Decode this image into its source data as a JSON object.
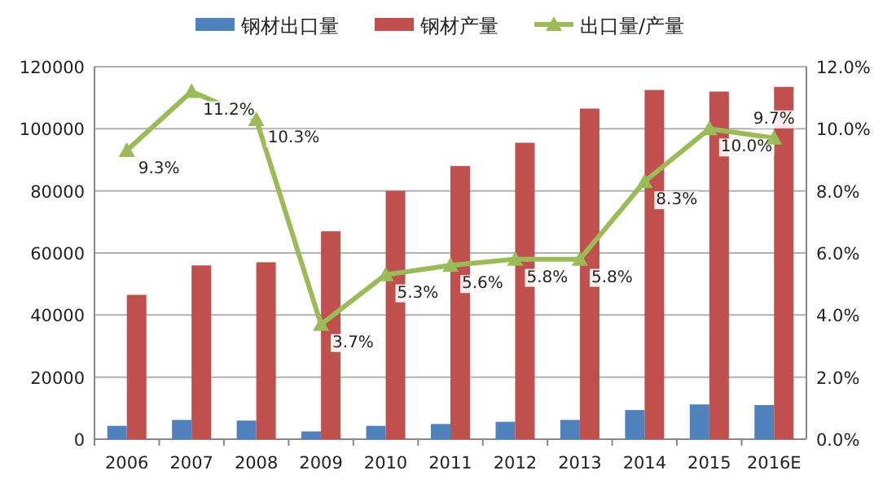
{
  "chart_data": {
    "type": "bar",
    "categories": [
      "2006",
      "2007",
      "2008",
      "2009",
      "2010",
      "2011",
      "2012",
      "2013",
      "2014",
      "2015",
      "2016E"
    ],
    "series": [
      {
        "name": "钢材出口量",
        "color": "#4f81bd",
        "values": [
          4300,
          6200,
          6000,
          2500,
          4300,
          4900,
          5600,
          6200,
          9400,
          11200,
          11000
        ]
      },
      {
        "name": "钢材产量",
        "color": "#c0504d",
        "values": [
          46500,
          56000,
          57000,
          67000,
          80000,
          88000,
          95500,
          106500,
          112500,
          112000,
          113500
        ]
      },
      {
        "name": "出口量/产量",
        "type": "line",
        "axis": "y2",
        "color": "#9bbb59",
        "marker": "triangle",
        "values": [
          9.3,
          11.2,
          10.3,
          3.7,
          5.3,
          5.6,
          5.8,
          5.8,
          8.3,
          10.0,
          9.7
        ],
        "value_labels": [
          "9.3%",
          "11.2%",
          "10.3%",
          "3.7%",
          "5.3%",
          "5.6%",
          "5.8%",
          "5.8%",
          "8.3%",
          "10.0%",
          "9.7%"
        ]
      }
    ],
    "ylim": [
      0,
      120000
    ],
    "yticks": [
      0,
      20000,
      40000,
      60000,
      80000,
      100000,
      120000
    ],
    "y2lim": [
      0,
      12
    ],
    "y2ticks": [
      {
        "value": 0,
        "label": "0.0%"
      },
      {
        "value": 2,
        "label": "2.0%"
      },
      {
        "value": 4,
        "label": "4.0%"
      },
      {
        "value": 6,
        "label": "6.0%"
      },
      {
        "value": 8,
        "label": "8.0%"
      },
      {
        "value": 10,
        "label": "10.0%"
      },
      {
        "value": 12,
        "label": "12.0%"
      }
    ],
    "grid": "y",
    "legend": "top"
  }
}
